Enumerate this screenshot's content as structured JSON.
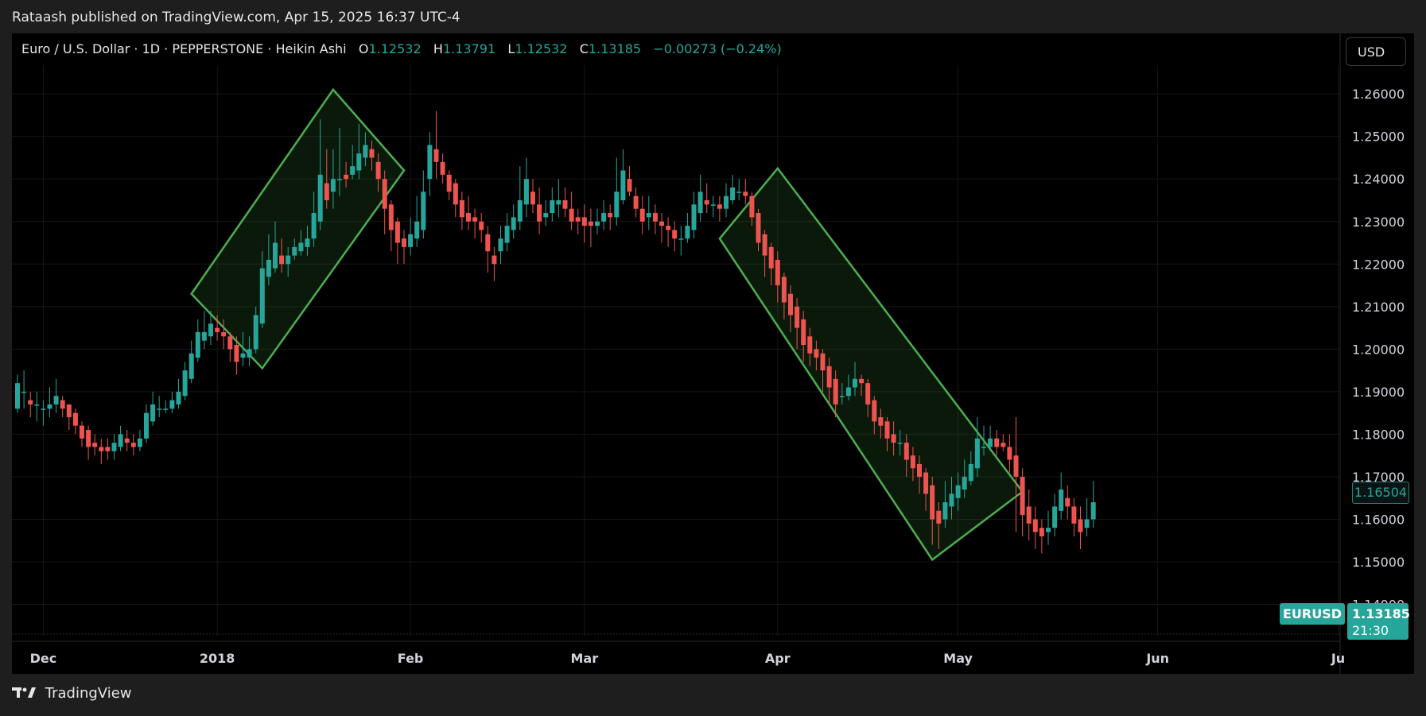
{
  "header": {
    "published_by": "Rataash published on TradingView.com, Apr 15, 2025 16:37 UTC-4"
  },
  "symbol_bar": {
    "title": "Euro / U.S. Dollar · 1D · PEPPERSTONE · Heikin Ashi",
    "o_label": "O",
    "o_value": "1.12532",
    "h_label": "H",
    "h_value": "1.13791",
    "l_label": "L",
    "l_value": "1.12532",
    "c_label": "C",
    "c_value": "1.13185",
    "change": "−0.00273 (−0.24%)"
  },
  "currency_button": "USD",
  "price_tags": {
    "crosshair_price": "1.16504",
    "symbol": "EURUSD",
    "last_price": "1.13185",
    "countdown": "21:30"
  },
  "footer": {
    "brand": "TradingView"
  },
  "colors": {
    "up": "#26a69a",
    "down": "#ef5350",
    "channel": "#4caf50",
    "background": "#000000"
  },
  "chart_data": {
    "type": "candlestick",
    "chart_style": "Heikin Ashi",
    "ylim": [
      1.1345,
      1.2675
    ],
    "y_ticks": [
      "1.26000",
      "1.25000",
      "1.24000",
      "1.23000",
      "1.22000",
      "1.21000",
      "1.20000",
      "1.19000",
      "1.18000",
      "1.17000",
      "1.16000",
      "1.15000",
      "1.14000"
    ],
    "x_ticks": [
      {
        "label": "Dec",
        "bar": 4
      },
      {
        "label": "2018",
        "bar": 31
      },
      {
        "label": "Feb",
        "bar": 61
      },
      {
        "label": "Mar",
        "bar": 88
      },
      {
        "label": "Apr",
        "bar": 118
      },
      {
        "label": "May",
        "bar": 146
      },
      {
        "label": "Jun",
        "bar": 177
      },
      {
        "label": "Ju",
        "bar": 205
      }
    ],
    "grid": true,
    "candles": [
      [
        1.186,
        1.192,
        1.194,
        1.185
      ],
      [
        1.19,
        1.19,
        1.195,
        1.186
      ],
      [
        1.188,
        1.187,
        1.19,
        1.184
      ],
      [
        1.187,
        1.187,
        1.19,
        1.183
      ],
      [
        1.186,
        1.186,
        1.188,
        1.182
      ],
      [
        1.186,
        1.187,
        1.191,
        1.184
      ],
      [
        1.187,
        1.189,
        1.193,
        1.185
      ],
      [
        1.188,
        1.186,
        1.189,
        1.184
      ],
      [
        1.187,
        1.184,
        1.187,
        1.181
      ],
      [
        1.185,
        1.182,
        1.186,
        1.18
      ],
      [
        1.182,
        1.179,
        1.183,
        1.177
      ],
      [
        1.181,
        1.177,
        1.182,
        1.174
      ],
      [
        1.178,
        1.177,
        1.18,
        1.175
      ],
      [
        1.177,
        1.176,
        1.179,
        1.173
      ],
      [
        1.177,
        1.176,
        1.179,
        1.174
      ],
      [
        1.176,
        1.178,
        1.18,
        1.174
      ],
      [
        1.177,
        1.18,
        1.182,
        1.176
      ],
      [
        1.179,
        1.178,
        1.181,
        1.176
      ],
      [
        1.178,
        1.177,
        1.18,
        1.175
      ],
      [
        1.177,
        1.179,
        1.181,
        1.176
      ],
      [
        1.179,
        1.185,
        1.187,
        1.178
      ],
      [
        1.183,
        1.187,
        1.19,
        1.182
      ],
      [
        1.186,
        1.186,
        1.189,
        1.184
      ],
      [
        1.186,
        1.186,
        1.188,
        1.185
      ],
      [
        1.186,
        1.188,
        1.19,
        1.185
      ],
      [
        1.187,
        1.19,
        1.193,
        1.186
      ],
      [
        1.189,
        1.195,
        1.197,
        1.188
      ],
      [
        1.193,
        1.199,
        1.202,
        1.192
      ],
      [
        1.198,
        1.204,
        1.207,
        1.197
      ],
      [
        1.202,
        1.204,
        1.209,
        1.2
      ],
      [
        1.203,
        1.206,
        1.209,
        1.201
      ],
      [
        1.205,
        1.204,
        1.208,
        1.202
      ],
      [
        1.204,
        1.203,
        1.207,
        1.2
      ],
      [
        1.203,
        1.2,
        1.204,
        1.197
      ],
      [
        1.201,
        1.197,
        1.203,
        1.194
      ],
      [
        1.198,
        1.199,
        1.204,
        1.196
      ],
      [
        1.198,
        1.2,
        1.203,
        1.196
      ],
      [
        1.2,
        1.208,
        1.21,
        1.199
      ],
      [
        1.206,
        1.219,
        1.223,
        1.205
      ],
      [
        1.217,
        1.221,
        1.227,
        1.215
      ],
      [
        1.219,
        1.225,
        1.23,
        1.218
      ],
      [
        1.222,
        1.22,
        1.226,
        1.218
      ],
      [
        1.22,
        1.222,
        1.224,
        1.217
      ],
      [
        1.222,
        1.224,
        1.226,
        1.221
      ],
      [
        1.223,
        1.225,
        1.228,
        1.222
      ],
      [
        1.224,
        1.226,
        1.229,
        1.222
      ],
      [
        1.226,
        1.232,
        1.237,
        1.224
      ],
      [
        1.23,
        1.241,
        1.254,
        1.228
      ],
      [
        1.239,
        1.235,
        1.247,
        1.233
      ],
      [
        1.237,
        1.24,
        1.247,
        1.233
      ],
      [
        1.24,
        1.24,
        1.252,
        1.236
      ],
      [
        1.241,
        1.24,
        1.244,
        1.238
      ],
      [
        1.241,
        1.243,
        1.248,
        1.24
      ],
      [
        1.242,
        1.246,
        1.253,
        1.24
      ],
      [
        1.245,
        1.248,
        1.251,
        1.243
      ],
      [
        1.247,
        1.245,
        1.249,
        1.242
      ],
      [
        1.244,
        1.24,
        1.246,
        1.237
      ],
      [
        1.24,
        1.233,
        1.242,
        1.227
      ],
      [
        1.234,
        1.228,
        1.235,
        1.223
      ],
      [
        1.23,
        1.225,
        1.231,
        1.22
      ],
      [
        1.226,
        1.224,
        1.228,
        1.22
      ],
      [
        1.224,
        1.227,
        1.231,
        1.222
      ],
      [
        1.226,
        1.23,
        1.236,
        1.224
      ],
      [
        1.228,
        1.237,
        1.242,
        1.226
      ],
      [
        1.24,
        1.248,
        1.251,
        1.236
      ],
      [
        1.247,
        1.244,
        1.256,
        1.24
      ],
      [
        1.244,
        1.241,
        1.246,
        1.239
      ],
      [
        1.241,
        1.237,
        1.242,
        1.235
      ],
      [
        1.239,
        1.234,
        1.24,
        1.231
      ],
      [
        1.235,
        1.231,
        1.237,
        1.228
      ],
      [
        1.232,
        1.23,
        1.236,
        1.228
      ],
      [
        1.231,
        1.23,
        1.233,
        1.226
      ],
      [
        1.23,
        1.228,
        1.232,
        1.225
      ],
      [
        1.227,
        1.223,
        1.229,
        1.218
      ],
      [
        1.222,
        1.22,
        1.224,
        1.216
      ],
      [
        1.223,
        1.226,
        1.229,
        1.22
      ],
      [
        1.225,
        1.229,
        1.232,
        1.223
      ],
      [
        1.228,
        1.231,
        1.234,
        1.226
      ],
      [
        1.23,
        1.235,
        1.243,
        1.228
      ],
      [
        1.234,
        1.24,
        1.245,
        1.231
      ],
      [
        1.237,
        1.234,
        1.24,
        1.232
      ],
      [
        1.234,
        1.23,
        1.238,
        1.227
      ],
      [
        1.231,
        1.232,
        1.235,
        1.229
      ],
      [
        1.232,
        1.235,
        1.238,
        1.23
      ],
      [
        1.234,
        1.235,
        1.24,
        1.231
      ],
      [
        1.235,
        1.233,
        1.238,
        1.231
      ],
      [
        1.233,
        1.23,
        1.237,
        1.228
      ],
      [
        1.231,
        1.23,
        1.233,
        1.227
      ],
      [
        1.231,
        1.229,
        1.234,
        1.225
      ],
      [
        1.23,
        1.229,
        1.233,
        1.224
      ],
      [
        1.229,
        1.23,
        1.233,
        1.227
      ],
      [
        1.23,
        1.232,
        1.235,
        1.228
      ],
      [
        1.232,
        1.231,
        1.234,
        1.228
      ],
      [
        1.231,
        1.237,
        1.245,
        1.229
      ],
      [
        1.235,
        1.242,
        1.247,
        1.234
      ],
      [
        1.24,
        1.237,
        1.243,
        1.236
      ],
      [
        1.236,
        1.233,
        1.238,
        1.231
      ],
      [
        1.233,
        1.23,
        1.236,
        1.227
      ],
      [
        1.231,
        1.232,
        1.236,
        1.228
      ],
      [
        1.232,
        1.23,
        1.234,
        1.227
      ],
      [
        1.23,
        1.229,
        1.232,
        1.225
      ],
      [
        1.229,
        1.228,
        1.231,
        1.224
      ],
      [
        1.228,
        1.226,
        1.23,
        1.223
      ],
      [
        1.226,
        1.226,
        1.229,
        1.222
      ],
      [
        1.226,
        1.229,
        1.232,
        1.225
      ],
      [
        1.228,
        1.234,
        1.237,
        1.226
      ],
      [
        1.232,
        1.237,
        1.241,
        1.23
      ],
      [
        1.235,
        1.234,
        1.239,
        1.232
      ],
      [
        1.234,
        1.234,
        1.236,
        1.231
      ],
      [
        1.234,
        1.233,
        1.236,
        1.23
      ],
      [
        1.233,
        1.236,
        1.239,
        1.231
      ],
      [
        1.235,
        1.238,
        1.241,
        1.234
      ],
      [
        1.237,
        1.237,
        1.24,
        1.235
      ],
      [
        1.237,
        1.236,
        1.24,
        1.234
      ],
      [
        1.236,
        1.231,
        1.237,
        1.229
      ],
      [
        1.232,
        1.225,
        1.233,
        1.223
      ],
      [
        1.227,
        1.222,
        1.228,
        1.217
      ],
      [
        1.224,
        1.219,
        1.225,
        1.215
      ],
      [
        1.221,
        1.215,
        1.223,
        1.211
      ],
      [
        1.217,
        1.211,
        1.218,
        1.207
      ],
      [
        1.213,
        1.208,
        1.215,
        1.204
      ],
      [
        1.21,
        1.205,
        1.212,
        1.2
      ],
      [
        1.207,
        1.201,
        1.209,
        1.197
      ],
      [
        1.203,
        1.199,
        1.205,
        1.196
      ],
      [
        1.2,
        1.198,
        1.202,
        1.195
      ],
      [
        1.199,
        1.195,
        1.2,
        1.19
      ],
      [
        1.196,
        1.191,
        1.198,
        1.187
      ],
      [
        1.193,
        1.187,
        1.195,
        1.184
      ],
      [
        1.189,
        1.189,
        1.192,
        1.187
      ],
      [
        1.189,
        1.191,
        1.194,
        1.188
      ],
      [
        1.191,
        1.193,
        1.197,
        1.189
      ],
      [
        1.193,
        1.192,
        1.194,
        1.189
      ],
      [
        1.192,
        1.187,
        1.193,
        1.184
      ],
      [
        1.188,
        1.183,
        1.189,
        1.18
      ],
      [
        1.184,
        1.182,
        1.186,
        1.179
      ],
      [
        1.183,
        1.179,
        1.184,
        1.176
      ],
      [
        1.18,
        1.178,
        1.183,
        1.175
      ],
      [
        1.178,
        1.178,
        1.181,
        1.175
      ],
      [
        1.178,
        1.174,
        1.18,
        1.17
      ],
      [
        1.175,
        1.172,
        1.177,
        1.169
      ],
      [
        1.173,
        1.17,
        1.175,
        1.166
      ],
      [
        1.171,
        1.166,
        1.172,
        1.162
      ],
      [
        1.168,
        1.16,
        1.17,
        1.154
      ],
      [
        1.162,
        1.159,
        1.164,
        1.153
      ],
      [
        1.16,
        1.164,
        1.169,
        1.158
      ],
      [
        1.163,
        1.166,
        1.17,
        1.16
      ],
      [
        1.165,
        1.168,
        1.171,
        1.162
      ],
      [
        1.167,
        1.17,
        1.174,
        1.165
      ],
      [
        1.169,
        1.173,
        1.176,
        1.168
      ],
      [
        1.172,
        1.179,
        1.184,
        1.17
      ],
      [
        1.177,
        1.177,
        1.182,
        1.175
      ],
      [
        1.177,
        1.179,
        1.182,
        1.176
      ],
      [
        1.179,
        1.177,
        1.181,
        1.175
      ],
      [
        1.178,
        1.177,
        1.18,
        1.176
      ],
      [
        1.177,
        1.174,
        1.18,
        1.171
      ],
      [
        1.175,
        1.17,
        1.184,
        1.157
      ],
      [
        1.17,
        1.161,
        1.172,
        1.156
      ],
      [
        1.163,
        1.159,
        1.167,
        1.155
      ],
      [
        1.16,
        1.157,
        1.163,
        1.153
      ],
      [
        1.158,
        1.156,
        1.16,
        1.152
      ],
      [
        1.157,
        1.158,
        1.162,
        1.154
      ],
      [
        1.158,
        1.163,
        1.166,
        1.156
      ],
      [
        1.162,
        1.167,
        1.171,
        1.16
      ],
      [
        1.165,
        1.163,
        1.168,
        1.16
      ],
      [
        1.163,
        1.159,
        1.165,
        1.156
      ],
      [
        1.16,
        1.157,
        1.163,
        1.153
      ],
      [
        1.158,
        1.16,
        1.165,
        1.156
      ],
      [
        1.16,
        1.164,
        1.169,
        1.158
      ]
    ],
    "drawings": [
      {
        "type": "rectangle-channel",
        "direction": "up",
        "start_bar": 27,
        "end_bar": 60
      },
      {
        "type": "rectangle-channel",
        "direction": "down",
        "start_bar": 109,
        "end_bar": 156
      }
    ]
  }
}
